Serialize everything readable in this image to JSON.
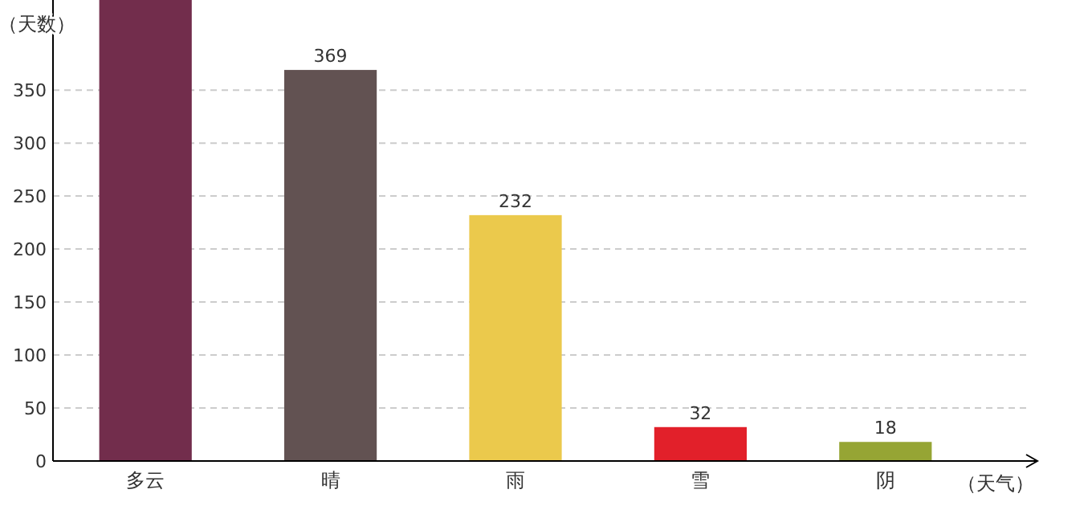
{
  "chart_data": {
    "type": "bar",
    "xlabel": "（天气）",
    "ylabel": "（天数）",
    "categories": [
      "多云",
      "晴",
      "雨",
      "雪",
      "阴"
    ],
    "values": [
      435,
      369,
      232,
      32,
      18
    ],
    "value_labels": [
      null,
      "369",
      "232",
      "32",
      "18"
    ],
    "colors": [
      "#722d4c",
      "#625252",
      "#ebc94c",
      "#e2202a",
      "#96a534"
    ],
    "ylim": [
      0,
      435
    ],
    "yticks": [
      0,
      50,
      100,
      150,
      200,
      250,
      300,
      350
    ],
    "grid": "y"
  }
}
